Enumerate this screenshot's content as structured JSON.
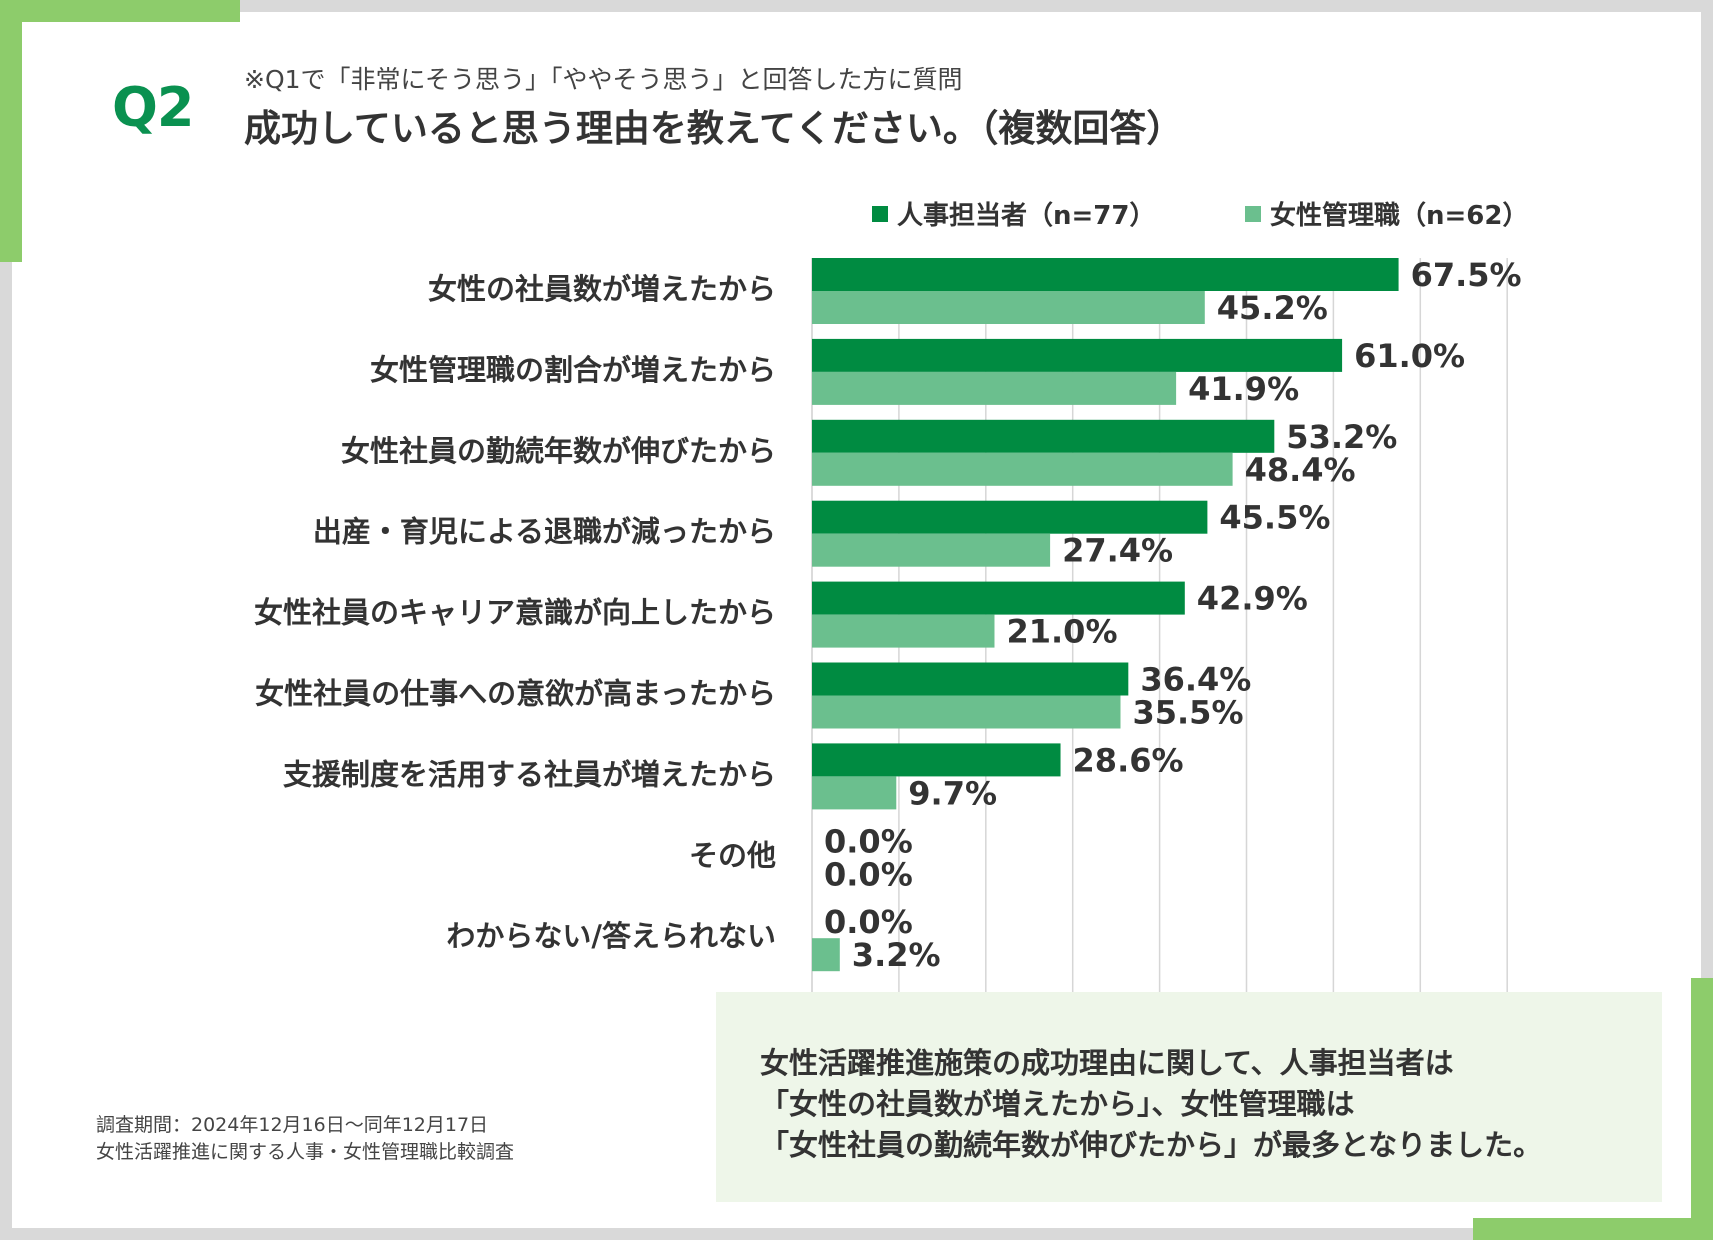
{
  "header": {
    "q_label": "Q2",
    "note": "※Q1で「非常にそう思う」「ややそう思う」と回答した方に質問",
    "title": "成功していると思う理由を教えてください。（複数回答）"
  },
  "colors": {
    "hr": "#008b41",
    "manager": "#6bbf8e",
    "accent": "#8dcc6b",
    "q_label": "#0a9150",
    "summary_bg": "#eef6e9",
    "grid": "#d6d6d6"
  },
  "chart_data": {
    "type": "bar",
    "orientation": "horizontal",
    "categories": [
      "女性の社員数が増えたから",
      "女性管理職の割合が増えたから",
      "女性社員の勤続年数が伸びたから",
      "出産・育児による退職が減ったから",
      "女性社員のキャリア意識が向上したから",
      "女性社員の仕事への意欲が高まったから",
      "支援制度を活用する社員が増えたから",
      "その他",
      "わからない/答えられない"
    ],
    "series": [
      {
        "name": "人事担当者（n=77）",
        "values": [
          67.5,
          61.0,
          53.2,
          45.5,
          42.9,
          36.4,
          28.6,
          0.0,
          0.0
        ],
        "labels": [
          "67.5%",
          "61.0%",
          "53.2%",
          "45.5%",
          "42.9%",
          "36.4%",
          "28.6%",
          "0.0%",
          "0.0%"
        ]
      },
      {
        "name": "女性管理職（n=62）",
        "values": [
          45.2,
          41.9,
          48.4,
          27.4,
          21.0,
          35.5,
          9.7,
          0.0,
          3.2
        ],
        "labels": [
          "45.2%",
          "41.9%",
          "48.4%",
          "27.4%",
          "21.0%",
          "35.5%",
          "9.7%",
          "0.0%",
          "3.2%"
        ]
      }
    ],
    "xlim": [
      0,
      80
    ],
    "grid": true,
    "legend": "top-right"
  },
  "summary": {
    "lines": [
      "女性活躍推進施策の成功理由に関して、人事担当者は",
      "「女性の社員数が増えたから」、女性管理職は",
      "「女性社員の勤続年数が伸びたから」が最多となりました。"
    ]
  },
  "footnote": {
    "period": "調査期間：2024年12月16日～同年12月17日",
    "survey": "女性活躍推進に関する人事・女性管理職比較調査"
  }
}
